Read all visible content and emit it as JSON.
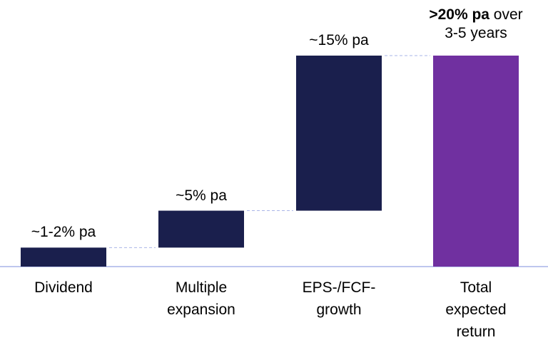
{
  "chart_data": {
    "type": "waterfall",
    "categories": [
      "Dividend",
      "Multiple expansion",
      "EPS-/FCF-growth",
      "Total expected return"
    ],
    "category_lines": [
      [
        "Dividend"
      ],
      [
        "Multiple",
        "expansion"
      ],
      [
        "EPS-/FCF-",
        "growth"
      ],
      [
        "Total",
        "expected",
        "return"
      ]
    ],
    "values": [
      1.8,
      3.5,
      14.7,
      20
    ],
    "is_total": [
      false,
      false,
      false,
      true
    ],
    "data_labels": [
      "~1-2% pa",
      "~5% pa",
      "~15% pa",
      ""
    ],
    "total_label": {
      "bold": ">20% pa",
      "rest": " over",
      "line2": "3-5 years"
    },
    "colors": {
      "increment": "#1a1f4d",
      "total": "#7030a0",
      "baseline": "#a9b4e8",
      "connector": "#a9b4e8"
    },
    "grid": false,
    "legend": "none"
  }
}
